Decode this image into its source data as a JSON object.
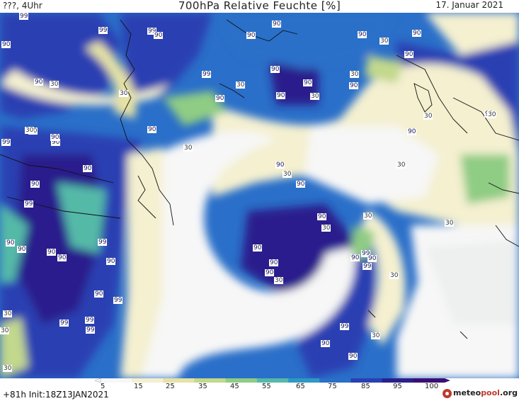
{
  "header": {
    "left_text": "???, 4Uhr",
    "title": "700hPa Relative Feuchte [%]",
    "date": "17. Januar 2021"
  },
  "footer": {
    "run_info": "+81h  Init:18Z13JAN2021",
    "logo_pre": "meteo",
    "logo_mid": "pool",
    "logo_post": ".org"
  },
  "colorbar": {
    "ticks": [
      "5",
      "15",
      "25",
      "35",
      "45",
      "55",
      "65",
      "75",
      "85",
      "95",
      "100"
    ],
    "colors": [
      "#f7f7f7",
      "#f4f0d0",
      "#e6e2a6",
      "#c2d88c",
      "#8fcc84",
      "#55b9a8",
      "#2f99c4",
      "#2a6fc9",
      "#2a3fb2",
      "#2b1f8c",
      "#3b0f73"
    ]
  },
  "contour_labels": [
    {
      "text": "99"
    },
    {
      "text": "99"
    },
    {
      "text": "99"
    },
    {
      "text": "90"
    },
    {
      "text": "90"
    },
    {
      "text": "99"
    },
    {
      "text": "90"
    },
    {
      "text": "30"
    },
    {
      "text": "30"
    },
    {
      "text": "90"
    },
    {
      "text": "30"
    },
    {
      "text": "90"
    },
    {
      "text": "90"
    },
    {
      "text": "90"
    },
    {
      "text": "90"
    },
    {
      "text": "30"
    },
    {
      "text": "30"
    },
    {
      "text": "90"
    },
    {
      "text": "90"
    },
    {
      "text": "90"
    },
    {
      "text": "30"
    },
    {
      "text": "90"
    },
    {
      "text": "90"
    },
    {
      "text": "30"
    },
    {
      "text": "99"
    },
    {
      "text": "90"
    },
    {
      "text": "90"
    },
    {
      "text": "30"
    },
    {
      "text": "90"
    },
    {
      "text": "30"
    },
    {
      "text": "90"
    },
    {
      "text": "30"
    },
    {
      "text": "30"
    },
    {
      "text": "90"
    },
    {
      "text": "30"
    },
    {
      "text": "90"
    },
    {
      "text": "90"
    },
    {
      "text": "90"
    },
    {
      "text": "30"
    },
    {
      "text": "90"
    },
    {
      "text": "99"
    },
    {
      "text": "90"
    },
    {
      "text": "30"
    },
    {
      "text": "30"
    },
    {
      "text": "90"
    },
    {
      "text": "90"
    },
    {
      "text": "99"
    },
    {
      "text": "90"
    },
    {
      "text": "90"
    },
    {
      "text": "90"
    },
    {
      "text": "99"
    },
    {
      "text": "90"
    },
    {
      "text": "90"
    },
    {
      "text": "30"
    },
    {
      "text": "99"
    },
    {
      "text": "90"
    },
    {
      "text": "99"
    },
    {
      "text": "30"
    },
    {
      "text": "30"
    },
    {
      "text": "90"
    },
    {
      "text": "99"
    },
    {
      "text": "99"
    },
    {
      "text": "99"
    },
    {
      "text": "30"
    },
    {
      "text": "99"
    },
    {
      "text": "30"
    },
    {
      "text": "90"
    },
    {
      "text": "90"
    },
    {
      "text": "99"
    },
    {
      "text": "30"
    },
    {
      "text": "90"
    },
    {
      "text": "30"
    }
  ]
}
